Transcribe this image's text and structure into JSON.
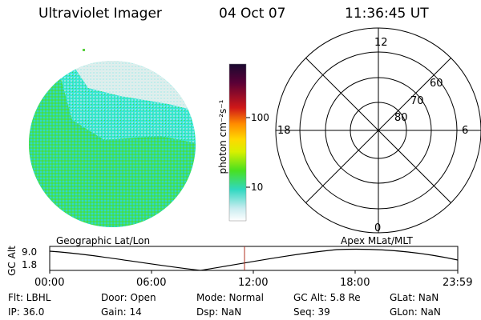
{
  "header": {
    "title": "Ultraviolet Imager",
    "date": "04 Oct 07",
    "time": "11:36:45 UT"
  },
  "colorbar": {
    "label": "photon cm⁻²s⁻¹",
    "ticks": [
      "100",
      "10"
    ],
    "colors": [
      "#2a0a3e",
      "#6a0030",
      "#c01010",
      "#ff7000",
      "#ffd000",
      "#c8f000",
      "#40e000",
      "#30e8d0",
      "#c0f0f0",
      "#ffffff"
    ]
  },
  "polar": {
    "mlt_labels": [
      "12",
      "18",
      "6",
      "0"
    ],
    "lat_labels": [
      "60",
      "70",
      "80"
    ]
  },
  "timeline": {
    "left_title": "Geographic Lat/Lon",
    "right_title": "Apex  MLat/MLT",
    "axis_label": "GC Alt",
    "y_labels": [
      "9.0",
      "1.8"
    ],
    "x_labels": [
      "00:00",
      "06:00",
      "12:00",
      "18:00",
      "23:59"
    ]
  },
  "footer": {
    "flt": "Flt: LBHL",
    "ip": "IP: 36.0",
    "door": "Door: Open",
    "gain": "Gain: 14",
    "mode": "Mode: Normal",
    "dsp": "Dsp:      NaN",
    "gcalt": "GC Alt: 5.8 Re",
    "seq": "Seq: 39",
    "glat": "GLat:      NaN",
    "glon": "GLon:      NaN"
  }
}
